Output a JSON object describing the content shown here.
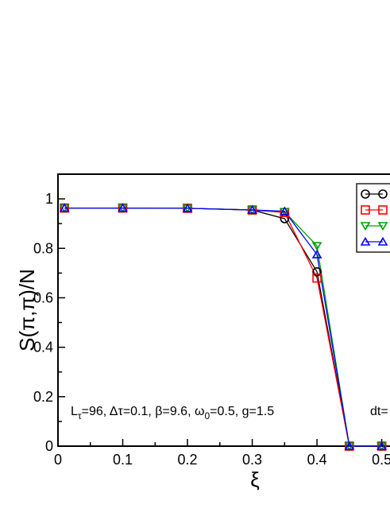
{
  "chart_data": {
    "type": "line",
    "ylabel": "S(π,π)/N",
    "xlabel": "ξ",
    "xlim": [
      0,
      0.5
    ],
    "ylim": [
      0,
      1.1
    ],
    "x_ticks": [
      "0",
      "0.1",
      "0.2",
      "0.3",
      "0.4",
      "0.5"
    ],
    "y_ticks": [
      "0",
      "0.2",
      "0.4",
      "0.6",
      "0.8",
      "1"
    ],
    "annotation": {
      "L_sub": "τ",
      "L_rest": "=96, Δτ=0.1, β=9.6, ω",
      "omega_sub": "0",
      "omega_rest": "=0.5, g=1.5"
    },
    "annotation_right": "dt=",
    "grid": false,
    "legend_position": "top-right (clipped)",
    "series": [
      {
        "color": "#000000",
        "marker": "circle",
        "x": [
          0.01,
          0.1,
          0.2,
          0.3,
          0.35,
          0.4,
          0.45,
          0.5
        ],
        "y": [
          0.963,
          0.963,
          0.962,
          0.955,
          0.92,
          0.705,
          0.0,
          0.0
        ]
      },
      {
        "color": "#ff0000",
        "marker": "square",
        "x": [
          0.01,
          0.1,
          0.2,
          0.3,
          0.35,
          0.4,
          0.45,
          0.5
        ],
        "y": [
          0.963,
          0.963,
          0.962,
          0.955,
          0.945,
          0.68,
          0.0,
          0.0
        ]
      },
      {
        "color": "#00a000",
        "marker": "triangle-down",
        "x": [
          0.01,
          0.1,
          0.2,
          0.3,
          0.35,
          0.4,
          0.45,
          0.5
        ],
        "y": [
          0.963,
          0.963,
          0.962,
          0.955,
          0.948,
          0.81,
          0.0,
          0.0
        ]
      },
      {
        "color": "#0000ff",
        "marker": "triangle-up",
        "x": [
          0.01,
          0.1,
          0.2,
          0.3,
          0.35,
          0.4,
          0.45,
          0.5
        ],
        "y": [
          0.963,
          0.963,
          0.962,
          0.955,
          0.95,
          0.775,
          0.0,
          0.0
        ]
      }
    ]
  }
}
